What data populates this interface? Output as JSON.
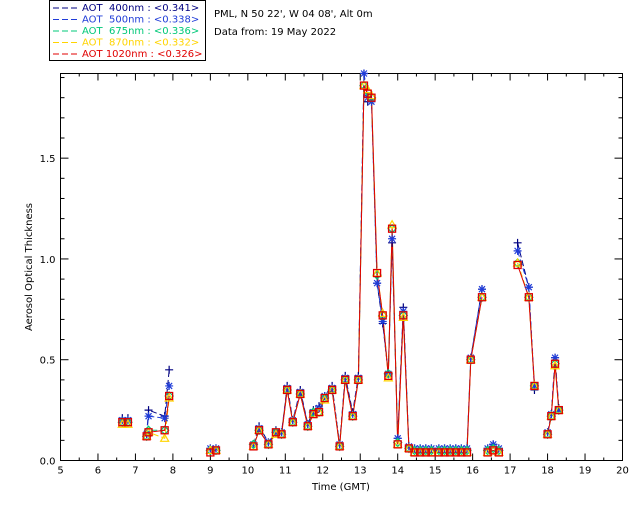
{
  "header": {
    "site": "PML, N 50 22', W 04 08', Alt 0m",
    "date": "Data from: 19 May 2022"
  },
  "chart_data": {
    "type": "line",
    "title": "",
    "xlabel": "Time (GMT)",
    "ylabel": "Aerosol Optical Thickness",
    "xlim": [
      5,
      20
    ],
    "ylim": [
      0,
      1.92
    ],
    "xticks": [
      "5",
      "6",
      "7",
      "8",
      "9",
      "10",
      "11",
      "12",
      "13",
      "14",
      "15",
      "16",
      "17",
      "18",
      "19",
      "20"
    ],
    "yticks": [
      "0.0",
      "0.5",
      "1.0",
      "1.5"
    ],
    "ytick_values": [
      0,
      0.5,
      1.0,
      1.5
    ],
    "legend_position": "top-left outside",
    "series": [
      {
        "name": "AOT  400nm : <0.341>",
        "color": "#000080",
        "marker": "plus",
        "points": [
          [
            6.65,
            0.21
          ],
          [
            6.8,
            0.21
          ],
          [
            7.3,
            0.13
          ],
          [
            7.35,
            0.25
          ],
          [
            7.78,
            0.22
          ],
          [
            7.9,
            0.45
          ],
          [
            9.0,
            0.06
          ],
          [
            9.15,
            0.06
          ],
          [
            10.15,
            0.08
          ],
          [
            10.3,
            0.17
          ],
          [
            10.55,
            0.09
          ],
          [
            10.75,
            0.15
          ],
          [
            10.9,
            0.14
          ],
          [
            11.05,
            0.37
          ],
          [
            11.2,
            0.2
          ],
          [
            11.4,
            0.35
          ],
          [
            11.6,
            0.18
          ],
          [
            11.75,
            0.25
          ],
          [
            11.9,
            0.27
          ],
          [
            12.05,
            0.32
          ],
          [
            12.25,
            0.37
          ],
          [
            12.45,
            0.08
          ],
          [
            12.6,
            0.42
          ],
          [
            12.8,
            0.24
          ],
          [
            12.95,
            0.42
          ],
          [
            13.1,
            1.93
          ],
          [
            13.2,
            1.78
          ],
          [
            13.3,
            1.79
          ],
          [
            13.45,
            0.88
          ],
          [
            13.6,
            0.68
          ],
          [
            13.75,
            0.43
          ],
          [
            13.85,
            1.08
          ],
          [
            14.0,
            0.11
          ],
          [
            14.15,
            0.76
          ],
          [
            14.3,
            0.07
          ],
          [
            14.45,
            0.06
          ],
          [
            14.6,
            0.06
          ],
          [
            14.75,
            0.06
          ],
          [
            14.9,
            0.06
          ],
          [
            15.1,
            0.06
          ],
          [
            15.25,
            0.06
          ],
          [
            15.4,
            0.06
          ],
          [
            15.55,
            0.06
          ],
          [
            15.7,
            0.06
          ],
          [
            15.85,
            0.06
          ],
          [
            15.95,
            0.51
          ],
          [
            16.25,
            0.85
          ],
          [
            16.4,
            0.06
          ],
          [
            16.55,
            0.08
          ],
          [
            16.7,
            0.06
          ],
          [
            17.2,
            1.08
          ],
          [
            17.5,
            0.86
          ],
          [
            17.65,
            0.35
          ],
          [
            18.0,
            0.14
          ],
          [
            18.1,
            0.23
          ],
          [
            18.2,
            0.51
          ],
          [
            18.3,
            0.26
          ]
        ]
      },
      {
        "name": "AOT  500nm : <0.338>",
        "color": "#1f3cd8",
        "marker": "asterisk",
        "points": [
          [
            6.65,
            0.2
          ],
          [
            6.8,
            0.2
          ],
          [
            7.3,
            0.13
          ],
          [
            7.35,
            0.22
          ],
          [
            7.78,
            0.21
          ],
          [
            7.9,
            0.37
          ],
          [
            9.0,
            0.06
          ],
          [
            9.15,
            0.06
          ],
          [
            10.15,
            0.08
          ],
          [
            10.3,
            0.16
          ],
          [
            10.55,
            0.09
          ],
          [
            10.75,
            0.14
          ],
          [
            10.9,
            0.14
          ],
          [
            11.05,
            0.36
          ],
          [
            11.2,
            0.2
          ],
          [
            11.4,
            0.34
          ],
          [
            11.6,
            0.18
          ],
          [
            11.75,
            0.24
          ],
          [
            11.9,
            0.26
          ],
          [
            12.05,
            0.32
          ],
          [
            12.25,
            0.36
          ],
          [
            12.45,
            0.08
          ],
          [
            12.6,
            0.41
          ],
          [
            12.8,
            0.23
          ],
          [
            12.95,
            0.41
          ],
          [
            13.1,
            1.94
          ],
          [
            13.2,
            1.8
          ],
          [
            13.3,
            1.78
          ],
          [
            13.45,
            0.88
          ],
          [
            13.6,
            0.69
          ],
          [
            13.75,
            0.43
          ],
          [
            13.85,
            1.1
          ],
          [
            14.0,
            0.11
          ],
          [
            14.15,
            0.74
          ],
          [
            14.3,
            0.07
          ],
          [
            14.45,
            0.06
          ],
          [
            14.6,
            0.06
          ],
          [
            14.75,
            0.06
          ],
          [
            14.9,
            0.06
          ],
          [
            15.1,
            0.06
          ],
          [
            15.25,
            0.06
          ],
          [
            15.4,
            0.06
          ],
          [
            15.55,
            0.06
          ],
          [
            15.7,
            0.06
          ],
          [
            15.85,
            0.06
          ],
          [
            15.95,
            0.51
          ],
          [
            16.25,
            0.85
          ],
          [
            16.4,
            0.06
          ],
          [
            16.55,
            0.08
          ],
          [
            16.7,
            0.06
          ],
          [
            17.2,
            1.04
          ],
          [
            17.5,
            0.86
          ],
          [
            17.65,
            0.37
          ],
          [
            18.0,
            0.14
          ],
          [
            18.1,
            0.23
          ],
          [
            18.2,
            0.51
          ],
          [
            18.3,
            0.25
          ]
        ]
      },
      {
        "name": "AOT  675nm : <0.336>",
        "color": "#00c878",
        "marker": "diamond",
        "points": [
          [
            6.65,
            0.19
          ],
          [
            6.8,
            0.19
          ],
          [
            7.3,
            0.12
          ],
          [
            7.35,
            0.15
          ],
          [
            7.78,
            0.15
          ],
          [
            7.9,
            0.32
          ],
          [
            9.0,
            0.05
          ],
          [
            9.15,
            0.05
          ],
          [
            10.15,
            0.08
          ],
          [
            10.3,
            0.15
          ],
          [
            10.55,
            0.08
          ],
          [
            10.75,
            0.14
          ],
          [
            10.9,
            0.13
          ],
          [
            11.05,
            0.35
          ],
          [
            11.2,
            0.19
          ],
          [
            11.4,
            0.33
          ],
          [
            11.6,
            0.17
          ],
          [
            11.75,
            0.24
          ],
          [
            11.9,
            0.24
          ],
          [
            12.05,
            0.31
          ],
          [
            12.25,
            0.35
          ],
          [
            12.45,
            0.07
          ],
          [
            12.6,
            0.4
          ],
          [
            12.8,
            0.22
          ],
          [
            12.95,
            0.4
          ],
          [
            13.1,
            1.86
          ],
          [
            13.2,
            1.83
          ],
          [
            13.3,
            1.8
          ],
          [
            13.45,
            0.92
          ],
          [
            13.6,
            0.72
          ],
          [
            13.75,
            0.43
          ],
          [
            13.85,
            1.15
          ],
          [
            14.0,
            0.09
          ],
          [
            14.15,
            0.72
          ],
          [
            14.3,
            0.06
          ],
          [
            14.45,
            0.05
          ],
          [
            14.6,
            0.05
          ],
          [
            14.75,
            0.05
          ],
          [
            14.9,
            0.05
          ],
          [
            15.1,
            0.05
          ],
          [
            15.25,
            0.05
          ],
          [
            15.4,
            0.05
          ],
          [
            15.55,
            0.05
          ],
          [
            15.7,
            0.05
          ],
          [
            15.85,
            0.05
          ],
          [
            15.95,
            0.5
          ],
          [
            16.25,
            0.81
          ],
          [
            16.4,
            0.05
          ],
          [
            16.55,
            0.06
          ],
          [
            16.7,
            0.05
          ],
          [
            17.2,
            0.98
          ],
          [
            17.5,
            0.81
          ],
          [
            17.65,
            0.37
          ],
          [
            18.0,
            0.13
          ],
          [
            18.1,
            0.22
          ],
          [
            18.2,
            0.48
          ],
          [
            18.3,
            0.25
          ]
        ]
      },
      {
        "name": "AOT  870nm : <0.332>",
        "color": "#ffd400",
        "marker": "triangle",
        "points": [
          [
            6.65,
            0.18
          ],
          [
            6.8,
            0.18
          ],
          [
            7.3,
            0.12
          ],
          [
            7.35,
            0.14
          ],
          [
            7.78,
            0.11
          ],
          [
            7.9,
            0.31
          ],
          [
            9.0,
            0.05
          ],
          [
            9.15,
            0.05
          ],
          [
            10.15,
            0.07
          ],
          [
            10.3,
            0.15
          ],
          [
            10.55,
            0.08
          ],
          [
            10.75,
            0.13
          ],
          [
            10.9,
            0.13
          ],
          [
            11.05,
            0.35
          ],
          [
            11.2,
            0.19
          ],
          [
            11.4,
            0.33
          ],
          [
            11.6,
            0.17
          ],
          [
            11.75,
            0.23
          ],
          [
            11.9,
            0.24
          ],
          [
            12.05,
            0.3
          ],
          [
            12.25,
            0.35
          ],
          [
            12.45,
            0.07
          ],
          [
            12.6,
            0.4
          ],
          [
            12.8,
            0.22
          ],
          [
            12.95,
            0.4
          ],
          [
            13.1,
            1.86
          ],
          [
            13.2,
            1.84
          ],
          [
            13.3,
            1.81
          ],
          [
            13.45,
            0.93
          ],
          [
            13.6,
            0.73
          ],
          [
            13.75,
            0.41
          ],
          [
            13.85,
            1.17
          ],
          [
            14.0,
            0.08
          ],
          [
            14.15,
            0.71
          ],
          [
            14.3,
            0.06
          ],
          [
            14.45,
            0.04
          ],
          [
            14.6,
            0.04
          ],
          [
            14.75,
            0.04
          ],
          [
            14.9,
            0.04
          ],
          [
            15.1,
            0.04
          ],
          [
            15.25,
            0.04
          ],
          [
            15.4,
            0.04
          ],
          [
            15.55,
            0.04
          ],
          [
            15.7,
            0.04
          ],
          [
            15.85,
            0.04
          ],
          [
            15.95,
            0.5
          ],
          [
            16.25,
            0.81
          ],
          [
            16.4,
            0.04
          ],
          [
            16.55,
            0.05
          ],
          [
            16.7,
            0.04
          ],
          [
            17.2,
            0.98
          ],
          [
            17.5,
            0.81
          ],
          [
            17.65,
            0.37
          ],
          [
            18.0,
            0.13
          ],
          [
            18.1,
            0.22
          ],
          [
            18.2,
            0.47
          ],
          [
            18.3,
            0.25
          ]
        ]
      },
      {
        "name": "AOT 1020nm : <0.326>",
        "color": "#e00000",
        "marker": "square",
        "points": [
          [
            6.65,
            0.19
          ],
          [
            6.8,
            0.19
          ],
          [
            7.3,
            0.12
          ],
          [
            7.35,
            0.14
          ],
          [
            7.78,
            0.15
          ],
          [
            7.9,
            0.32
          ],
          [
            9.0,
            0.04
          ],
          [
            9.15,
            0.05
          ],
          [
            10.15,
            0.07
          ],
          [
            10.3,
            0.15
          ],
          [
            10.55,
            0.08
          ],
          [
            10.75,
            0.14
          ],
          [
            10.9,
            0.13
          ],
          [
            11.05,
            0.35
          ],
          [
            11.2,
            0.19
          ],
          [
            11.4,
            0.33
          ],
          [
            11.6,
            0.17
          ],
          [
            11.75,
            0.23
          ],
          [
            11.9,
            0.24
          ],
          [
            12.05,
            0.31
          ],
          [
            12.25,
            0.35
          ],
          [
            12.45,
            0.07
          ],
          [
            12.6,
            0.4
          ],
          [
            12.8,
            0.22
          ],
          [
            12.95,
            0.4
          ],
          [
            13.1,
            1.86
          ],
          [
            13.2,
            1.82
          ],
          [
            13.3,
            1.8
          ],
          [
            13.45,
            0.93
          ],
          [
            13.6,
            0.72
          ],
          [
            13.75,
            0.42
          ],
          [
            13.85,
            1.15
          ],
          [
            14.0,
            0.08
          ],
          [
            14.15,
            0.72
          ],
          [
            14.3,
            0.06
          ],
          [
            14.45,
            0.04
          ],
          [
            14.6,
            0.04
          ],
          [
            14.75,
            0.04
          ],
          [
            14.9,
            0.04
          ],
          [
            15.1,
            0.04
          ],
          [
            15.25,
            0.04
          ],
          [
            15.4,
            0.04
          ],
          [
            15.55,
            0.04
          ],
          [
            15.7,
            0.04
          ],
          [
            15.85,
            0.04
          ],
          [
            15.95,
            0.5
          ],
          [
            16.25,
            0.81
          ],
          [
            16.4,
            0.04
          ],
          [
            16.55,
            0.05
          ],
          [
            16.7,
            0.04
          ],
          [
            17.2,
            0.97
          ],
          [
            17.5,
            0.81
          ],
          [
            17.65,
            0.37
          ],
          [
            18.0,
            0.13
          ],
          [
            18.1,
            0.22
          ],
          [
            18.2,
            0.48
          ],
          [
            18.3,
            0.25
          ]
        ]
      }
    ],
    "segments": [
      [
        0,
        1
      ],
      [
        2,
        5
      ],
      [
        6,
        7
      ],
      [
        8,
        46
      ],
      [
        47,
        49
      ],
      [
        50,
        52
      ],
      [
        53,
        56
      ]
    ]
  }
}
